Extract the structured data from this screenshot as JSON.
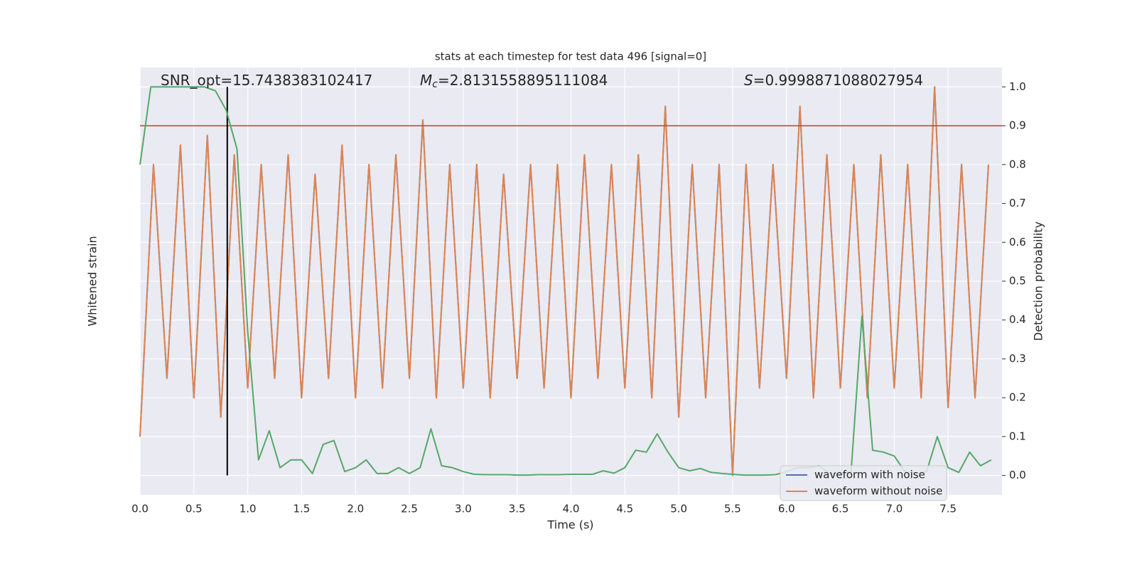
{
  "chart_data": {
    "type": "line",
    "title": "stats at each timestep for test data 496 [signal=0]",
    "xlabel": "Time (s)",
    "ylabel": "Detection probability",
    "y2label": "Whitened strain",
    "annotations": [
      {
        "text": "SNR_opt=15.7438383102417"
      },
      {
        "symbol": "M",
        "subscript": "c",
        "text": "=2.8131558895111084"
      },
      {
        "symbol": "S",
        "text": "=0.9998871088027954"
      }
    ],
    "xlim": [
      0,
      8
    ],
    "xticks": [
      {
        "value": 0,
        "label": "0.0"
      },
      {
        "value": 0.5,
        "label": "0.5"
      },
      {
        "value": 1,
        "label": "1.0"
      },
      {
        "value": 1.5,
        "label": "1.5"
      },
      {
        "value": 2,
        "label": "2.0"
      },
      {
        "value": 2.5,
        "label": "2.5"
      },
      {
        "value": 3,
        "label": "3.0"
      },
      {
        "value": 3.5,
        "label": "3.5"
      },
      {
        "value": 4,
        "label": "4.0"
      },
      {
        "value": 4.5,
        "label": "4.5"
      },
      {
        "value": 5,
        "label": "5.0"
      },
      {
        "value": 5.5,
        "label": "5.5"
      },
      {
        "value": 6,
        "label": "6.0"
      },
      {
        "value": 6.5,
        "label": "6.5"
      },
      {
        "value": 7,
        "label": "7.0"
      },
      {
        "value": 7.5,
        "label": "7.5"
      }
    ],
    "ylim": [
      -0.05,
      1.05
    ],
    "yticks": [
      {
        "value": 0,
        "label": "0.0"
      },
      0.1,
      0.2,
      0.3,
      0.4,
      0.5,
      0.6,
      0.7,
      0.8,
      0.9,
      {
        "value": 1,
        "label": "1.0"
      }
    ],
    "y2lim": [
      -1.1,
      1.1
    ],
    "grid": true,
    "legend": "lower right",
    "threshold": {
      "value": 0.9,
      "color": "#c03d3e"
    },
    "marker_line": {
      "x": 0.81,
      "color": "#000000"
    },
    "strain_x": [
      0,
      0.125,
      0.25,
      0.375,
      0.5,
      0.625,
      0.75,
      0.875,
      1,
      1.125,
      1.25,
      1.375,
      1.5,
      1.625,
      1.75,
      1.875,
      2,
      2.125,
      2.25,
      2.375,
      2.5,
      2.625,
      2.75,
      2.875,
      3,
      3.125,
      3.25,
      3.375,
      3.5,
      3.625,
      3.75,
      3.875,
      4,
      4.125,
      4.25,
      4.375,
      4.5,
      4.625,
      4.75,
      4.875,
      5,
      5.125,
      5.25,
      5.375,
      5.5,
      5.625,
      5.75,
      5.875,
      6,
      6.125,
      6.25,
      6.375,
      6.5,
      6.625,
      6.75,
      6.875,
      7,
      7.125,
      7.25,
      7.375,
      7.5,
      7.625,
      7.75,
      7.875
    ],
    "series": [
      {
        "name": "waveform with noise",
        "color": "#4c72b0",
        "axis": "y2",
        "values": [
          -0.8,
          0.6,
          -0.5,
          0.7,
          -0.6,
          0.75,
          -0.7,
          0.65,
          -0.55,
          0.6,
          -0.5,
          0.65,
          -0.6,
          0.55,
          -0.5,
          0.7,
          -0.6,
          0.6,
          -0.55,
          0.65,
          -0.5,
          0.83,
          -0.6,
          0.6,
          -0.55,
          0.6,
          -0.6,
          0.55,
          -0.5,
          0.6,
          -0.55,
          0.6,
          -0.6,
          0.65,
          -0.5,
          0.6,
          -0.55,
          0.65,
          -0.6,
          0.9,
          -0.7,
          0.6,
          -0.6,
          0.6,
          -1.0,
          0.6,
          -0.55,
          0.6,
          -0.5,
          0.9,
          -0.6,
          0.65,
          -0.55,
          0.6,
          -0.6,
          0.65,
          -0.55,
          0.6,
          -0.6,
          1.0,
          -0.65,
          0.6,
          -0.6,
          0.6
        ]
      },
      {
        "name": "waveform without noise",
        "color": "#dd8452",
        "axis": "y2",
        "values": [
          -0.8,
          0.6,
          -0.5,
          0.7,
          -0.6,
          0.75,
          -0.7,
          0.65,
          -0.55,
          0.6,
          -0.5,
          0.65,
          -0.6,
          0.55,
          -0.5,
          0.7,
          -0.6,
          0.6,
          -0.55,
          0.65,
          -0.5,
          0.83,
          -0.6,
          0.6,
          -0.55,
          0.6,
          -0.6,
          0.55,
          -0.5,
          0.6,
          -0.55,
          0.6,
          -0.6,
          0.65,
          -0.5,
          0.6,
          -0.55,
          0.65,
          -0.6,
          0.9,
          -0.7,
          0.6,
          -0.6,
          0.6,
          -1.0,
          0.6,
          -0.55,
          0.6,
          -0.5,
          0.9,
          -0.6,
          0.65,
          -0.55,
          0.6,
          -0.6,
          0.65,
          -0.55,
          0.6,
          -0.6,
          1.0,
          -0.65,
          0.6,
          -0.6,
          0.6
        ]
      }
    ],
    "probability": {
      "color": "#55a868",
      "x": [
        0,
        0.1,
        0.2,
        0.3,
        0.4,
        0.5,
        0.6,
        0.7,
        0.8,
        0.9,
        1,
        1.1,
        1.2,
        1.3,
        1.4,
        1.5,
        1.6,
        1.7,
        1.8,
        1.9,
        2,
        2.1,
        2.2,
        2.3,
        2.4,
        2.5,
        2.6,
        2.7,
        2.8,
        2.9,
        3,
        3.1,
        3.2,
        3.3,
        3.4,
        3.5,
        3.6,
        3.7,
        3.8,
        3.9,
        4,
        4.1,
        4.2,
        4.3,
        4.4,
        4.5,
        4.6,
        4.7,
        4.8,
        4.9,
        5,
        5.1,
        5.2,
        5.3,
        5.4,
        5.5,
        5.6,
        5.7,
        5.8,
        5.9,
        6,
        6.1,
        6.2,
        6.3,
        6.4,
        6.5,
        6.6,
        6.7,
        6.8,
        6.9,
        7,
        7.1,
        7.2,
        7.3,
        7.4,
        7.5,
        7.6,
        7.7,
        7.8,
        7.9
      ],
      "values": [
        0.8,
        1.0,
        1.0,
        1.0,
        1.0,
        1.0,
        1.0,
        0.99,
        0.94,
        0.84,
        0.37,
        0.04,
        0.115,
        0.02,
        0.04,
        0.04,
        0.005,
        0.08,
        0.09,
        0.01,
        0.02,
        0.04,
        0.005,
        0.005,
        0.02,
        0.005,
        0.02,
        0.12,
        0.025,
        0.02,
        0.01,
        0.003,
        0.002,
        0.002,
        0.002,
        0.001,
        0.001,
        0.002,
        0.002,
        0.002,
        0.003,
        0.003,
        0.003,
        0.012,
        0.006,
        0.02,
        0.065,
        0.06,
        0.107,
        0.06,
        0.02,
        0.012,
        0.018,
        0.008,
        0.005,
        0.003,
        0.001,
        0.001,
        0.001,
        0.002,
        0.01,
        0.02,
        0.02,
        0.025,
        0.005,
        0.003,
        0.01,
        0.41,
        0.065,
        0.06,
        0.05,
        0.01,
        0.005,
        0.01,
        0.1,
        0.02,
        0.008,
        0.06,
        0.025,
        0.04
      ]
    }
  }
}
